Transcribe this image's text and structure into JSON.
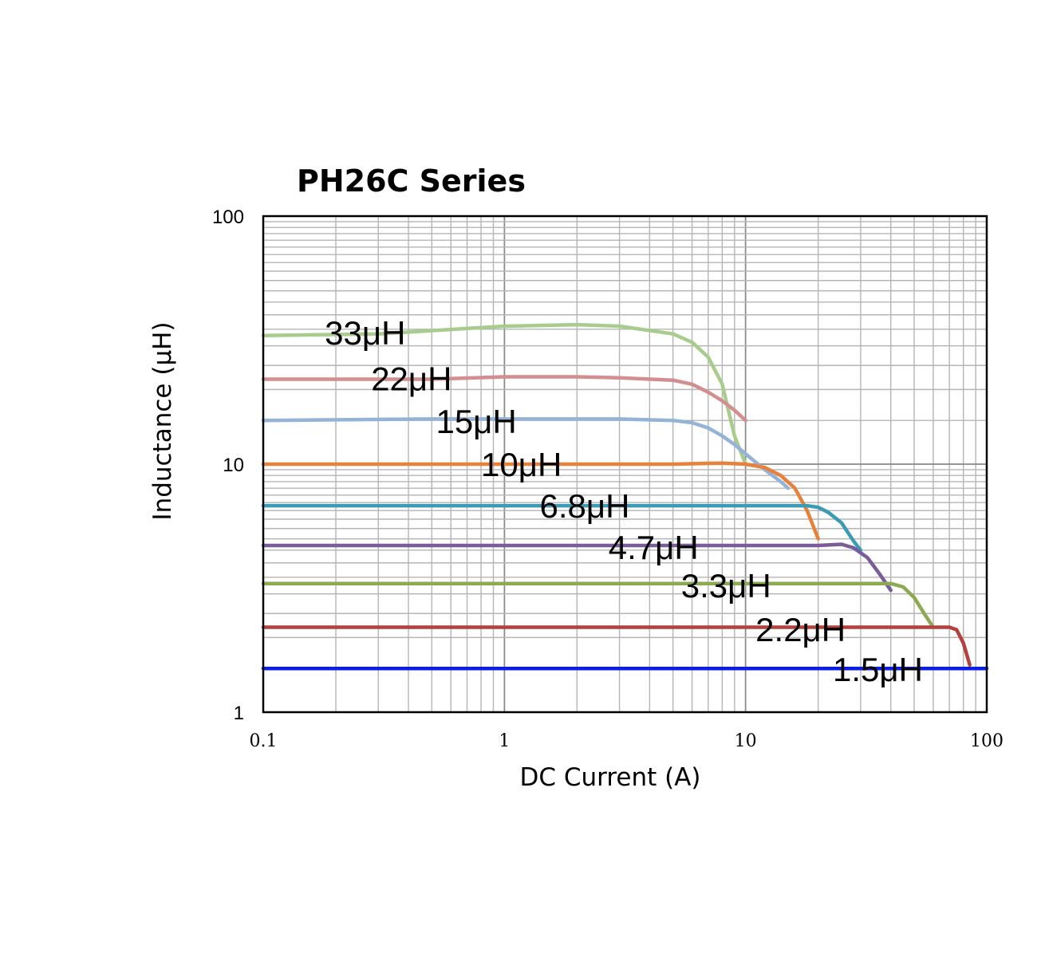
{
  "chart_data": {
    "type": "line",
    "title": "PH26C  Series",
    "xlabel": "DC Current (A)",
    "ylabel": "Inductance (μH)",
    "x_scale": "log",
    "y_scale": "log",
    "xlim": [
      0.1,
      100
    ],
    "ylim": [
      1,
      100
    ],
    "grid": true,
    "x_ticks": [
      "0.1",
      "1",
      "10",
      "100"
    ],
    "y_ticks": [
      "1",
      "10",
      "100"
    ],
    "series": [
      {
        "name": "33μH",
        "color": "#a8cc8c",
        "x": [
          0.1,
          0.3,
          1,
          2,
          3,
          5,
          6,
          7,
          8,
          9,
          10
        ],
        "y": [
          33,
          33.5,
          36,
          36.5,
          36,
          33.5,
          31,
          27,
          21,
          13,
          10
        ]
      },
      {
        "name": "22μH",
        "color": "#d38f8f",
        "x": [
          0.1,
          0.5,
          1,
          2,
          3,
          5,
          6,
          7,
          8,
          9,
          10
        ],
        "y": [
          22,
          22,
          22.5,
          22.5,
          22.3,
          21.8,
          21,
          19.5,
          18,
          16.5,
          15
        ]
      },
      {
        "name": "15μH",
        "color": "#94b3d6",
        "x": [
          0.1,
          0.5,
          1,
          3,
          5,
          6,
          7,
          8,
          9,
          10,
          12,
          14,
          15
        ],
        "y": [
          15,
          15.2,
          15.2,
          15.2,
          15,
          14.7,
          14,
          13,
          12,
          11,
          9.5,
          8.5,
          8
        ]
      },
      {
        "name": "10μH",
        "color": "#e6823c",
        "x": [
          0.1,
          1,
          5,
          8,
          10,
          12,
          14,
          16,
          18,
          20
        ],
        "y": [
          10,
          10,
          10,
          10.1,
          10,
          9.7,
          9,
          8,
          6.5,
          5
        ]
      },
      {
        "name": "6.8μH",
        "color": "#3c9bb4",
        "x": [
          0.1,
          1,
          10,
          18,
          20,
          22,
          25,
          28,
          30
        ],
        "y": [
          6.8,
          6.8,
          6.8,
          6.8,
          6.7,
          6.4,
          5.8,
          4.9,
          4.5
        ]
      },
      {
        "name": "4.7μH",
        "color": "#7a5c9a",
        "x": [
          0.1,
          1,
          10,
          20,
          25,
          28,
          32,
          36,
          40
        ],
        "y": [
          4.7,
          4.7,
          4.7,
          4.7,
          4.75,
          4.6,
          4.2,
          3.6,
          3.1
        ]
      },
      {
        "name": "3.3μH",
        "color": "#8caa50",
        "x": [
          0.1,
          1,
          10,
          30,
          40,
          45,
          50,
          55,
          60
        ],
        "y": [
          3.3,
          3.3,
          3.3,
          3.3,
          3.3,
          3.2,
          2.9,
          2.5,
          2.2
        ]
      },
      {
        "name": "2.2μH",
        "color": "#b4413c",
        "x": [
          0.1,
          1,
          10,
          50,
          65,
          70,
          75,
          80,
          85
        ],
        "y": [
          2.2,
          2.2,
          2.2,
          2.2,
          2.2,
          2.2,
          2.15,
          1.9,
          1.55
        ]
      },
      {
        "name": "1.5μH",
        "color": "#0a1ee6",
        "x": [
          0.1,
          1,
          10,
          100
        ],
        "y": [
          1.5,
          1.5,
          1.5,
          1.5
        ]
      }
    ],
    "labels": [
      {
        "text": "33μH",
        "x": 0.18,
        "y": 33
      },
      {
        "text": "22μH",
        "x": 0.28,
        "y": 21.5
      },
      {
        "text": "15μH",
        "x": 0.52,
        "y": 14.5
      },
      {
        "text": "10μH",
        "x": 0.8,
        "y": 9.7
      },
      {
        "text": "6.8μH",
        "x": 1.4,
        "y": 6.6
      },
      {
        "text": "4.7μH",
        "x": 2.7,
        "y": 4.5
      },
      {
        "text": "3.3μH",
        "x": 5.4,
        "y": 3.15
      },
      {
        "text": "2.2μH",
        "x": 11,
        "y": 2.1
      },
      {
        "text": "1.5μH",
        "x": 23,
        "y": 1.45
      }
    ]
  }
}
